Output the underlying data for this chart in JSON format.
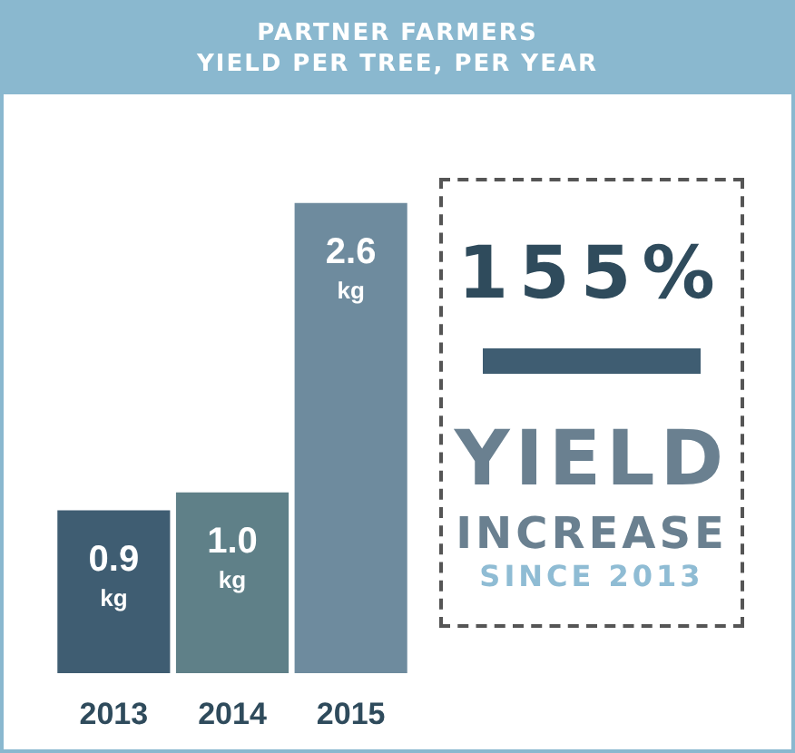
{
  "chart_data": {
    "type": "bar",
    "title": "PARTNER FARMERS\nYIELD PER TREE, PER YEAR",
    "categories": [
      "2013",
      "2014",
      "2015"
    ],
    "values": [
      0.9,
      1.0,
      2.6
    ],
    "colors": [
      "#3f5d72",
      "#5f8088",
      "#6e8b9e"
    ],
    "value_labels": [
      "0.9 kg",
      "1.0 kg",
      "2.6 kg"
    ],
    "annotations": [
      "155%",
      "YIELD",
      "INCREASE",
      "SINCE 2013"
    ]
  }
}
